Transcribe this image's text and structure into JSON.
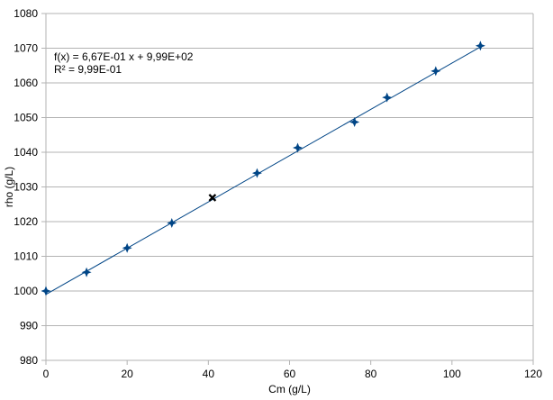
{
  "chart_data": {
    "type": "scatter",
    "title": "",
    "xlabel": "Cm (g/L)",
    "ylabel": "rho (g/L)",
    "xlim": [
      0,
      120
    ],
    "ylim": [
      980,
      1080
    ],
    "x_ticks": [
      "0",
      "20",
      "40",
      "60",
      "80",
      "100",
      "120"
    ],
    "y_ticks": [
      "980",
      "990",
      "1000",
      "1010",
      "1020",
      "1030",
      "1040",
      "1050",
      "1060",
      "1070",
      "1080"
    ],
    "grid": "horizontal",
    "series": [
      {
        "marker": "four-point-star",
        "color": "#004586",
        "x": [
          0,
          10,
          20,
          31,
          52,
          62,
          76,
          84,
          96,
          107
        ],
        "y": [
          1000.0,
          1005.4,
          1012.4,
          1019.6,
          1034.0,
          1041.3,
          1048.7,
          1055.8,
          1063.4,
          1070.7
        ]
      },
      {
        "marker": "x",
        "color": "#000000",
        "x": [
          41
        ],
        "y": [
          1026.9
        ]
      }
    ],
    "trendline": {
      "slope": 0.667,
      "intercept": 999.0,
      "color": "#004586",
      "x_range": [
        0,
        107
      ]
    },
    "annotations": {
      "equation": "f(x) = 6,67E-01 x + 9,99E+02",
      "r_squared": "R² = 9,99E-01"
    }
  }
}
